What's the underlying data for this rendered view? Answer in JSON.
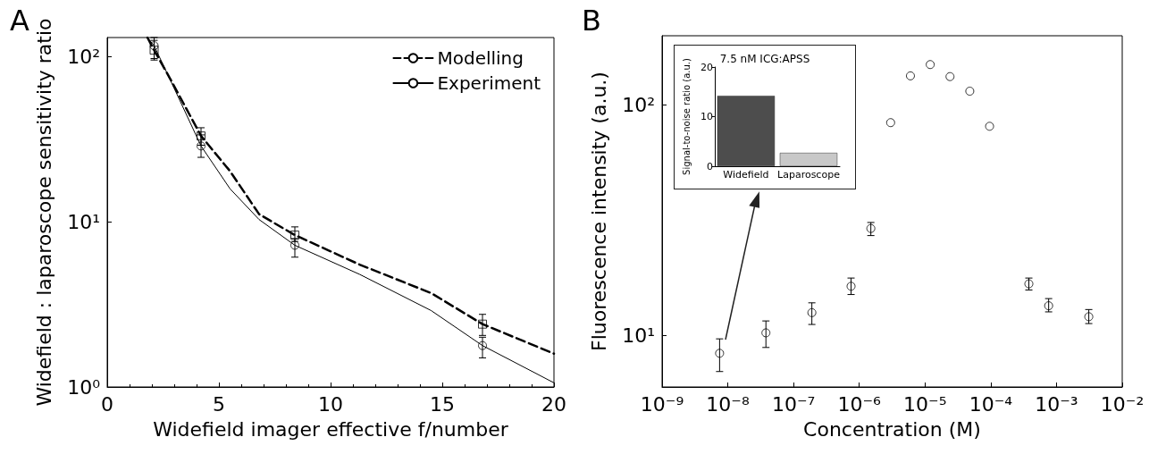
{
  "chart_data": [
    {
      "type": "line",
      "title": "A",
      "xlabel": "Widefield imager effective f/number",
      "ylabel": "Widefield : laparoscope sensitivity ratio",
      "log": "y",
      "xlim": [
        0,
        20
      ],
      "xticks": [
        0,
        5,
        10,
        15,
        20
      ],
      "ylim": [
        1,
        130
      ],
      "yticks": [
        {
          "value": 1,
          "label": "10⁰"
        },
        {
          "value": 10,
          "label": "10¹"
        },
        {
          "value": 100,
          "label": "10²"
        }
      ],
      "legend": "top right",
      "series": [
        {
          "name": "Modelling",
          "color": "#000000",
          "marker": "none",
          "line_style": "dashed",
          "x": [
            1.8,
            2.1,
            2.8,
            4.2,
            5.5,
            6.8,
            8.4,
            11.3,
            14.5,
            16.8,
            20
          ],
          "values": [
            130,
            109,
            74,
            33,
            20.2,
            11.1,
            8.3,
            5.5,
            3.7,
            2.4,
            1.59
          ]
        },
        {
          "name": "Experiment",
          "color": "#000000",
          "marker": "none",
          "line_style": "solid",
          "x": [
            1.8,
            2.1,
            3.0,
            4.2,
            5.5,
            6.8,
            8.4,
            11.3,
            14.5,
            16.8,
            20
          ],
          "values": [
            130,
            116,
            64,
            28.7,
            15.8,
            10.3,
            7.2,
            4.8,
            2.9,
            1.78,
            1.06
          ]
        },
        {
          "type": "scatter",
          "color": "#000000",
          "marker": "square",
          "x": [
            2.1,
            4.2,
            8.4,
            16.8
          ],
          "values": [
            109,
            33,
            8.3,
            2.4
          ],
          "errors": [
            [
              95,
              125
            ],
            [
              29,
              37
            ],
            [
              7.6,
              9.3
            ],
            [
              2.05,
              2.75
            ]
          ]
        },
        {
          "type": "scatter",
          "color": "#000000",
          "marker": "circle",
          "x": [
            2.1,
            4.2,
            8.4,
            16.8
          ],
          "values": [
            116,
            28.7,
            7.2,
            1.78
          ],
          "errors": [
            [
              97,
              130
            ],
            [
              24.5,
              33.5
            ],
            [
              6.1,
              7.9
            ],
            [
              1.5,
              2.0
            ]
          ]
        }
      ]
    },
    {
      "type": "scatter",
      "title": "B",
      "xlabel": "Concentration (M)",
      "ylabel": "Fluorescence intensity (a.u.)",
      "log": "xy",
      "marker": "circle",
      "color": "#000000",
      "xlim": [
        1e-09,
        0.01
      ],
      "xticks": [
        {
          "value": 1e-09,
          "label": "10⁻⁹"
        },
        {
          "value": 1e-08,
          "label": "10⁻⁸"
        },
        {
          "value": 1e-07,
          "label": "10⁻⁷"
        },
        {
          "value": 1e-06,
          "label": "10⁻⁶"
        },
        {
          "value": 1e-05,
          "label": "10⁻⁵"
        },
        {
          "value": 0.0001,
          "label": "10⁻⁴"
        },
        {
          "value": 0.001,
          "label": "10⁻³"
        },
        {
          "value": 0.01,
          "label": "10⁻²"
        }
      ],
      "ylim": [
        6,
        200
      ],
      "yticks": [
        {
          "value": 10,
          "label": "10¹"
        },
        {
          "value": 100,
          "label": "10²"
        }
      ],
      "x": [
        7.5e-09,
        3.8e-08,
        1.9e-07,
        7.5e-07,
        1.5e-06,
        3e-06,
        6e-06,
        1.2e-05,
        2.4e-05,
        4.8e-05,
        9.6e-05,
        0.00038,
        0.00076,
        0.0031
      ],
      "values": [
        8.4,
        10.3,
        12.6,
        16.4,
        29.2,
        84,
        134,
        150,
        133,
        115,
        81,
        16.8,
        13.5,
        12.1
      ],
      "errors": [
        [
          7.0,
          9.7
        ],
        [
          8.9,
          11.6
        ],
        [
          11.2,
          13.9
        ],
        [
          15.1,
          17.8
        ],
        [
          27.2,
          31
        ],
        null,
        null,
        null,
        null,
        null,
        null,
        [
          15.8,
          17.8
        ],
        [
          12.7,
          14.5
        ],
        [
          11.3,
          13.0
        ]
      ]
    },
    {
      "type": "bar",
      "title": "7.5 nM ICG:APSS",
      "ylabel": "Signal-to-noise ratio (a.u.)",
      "categories": [
        "Widefield",
        "Laparoscope"
      ],
      "values": [
        14.2,
        2.7
      ],
      "colors": [
        "#4d4d4d",
        "#c8c8c8"
      ],
      "ylim": [
        0,
        20
      ],
      "yticks": [
        0,
        10,
        20
      ]
    }
  ]
}
